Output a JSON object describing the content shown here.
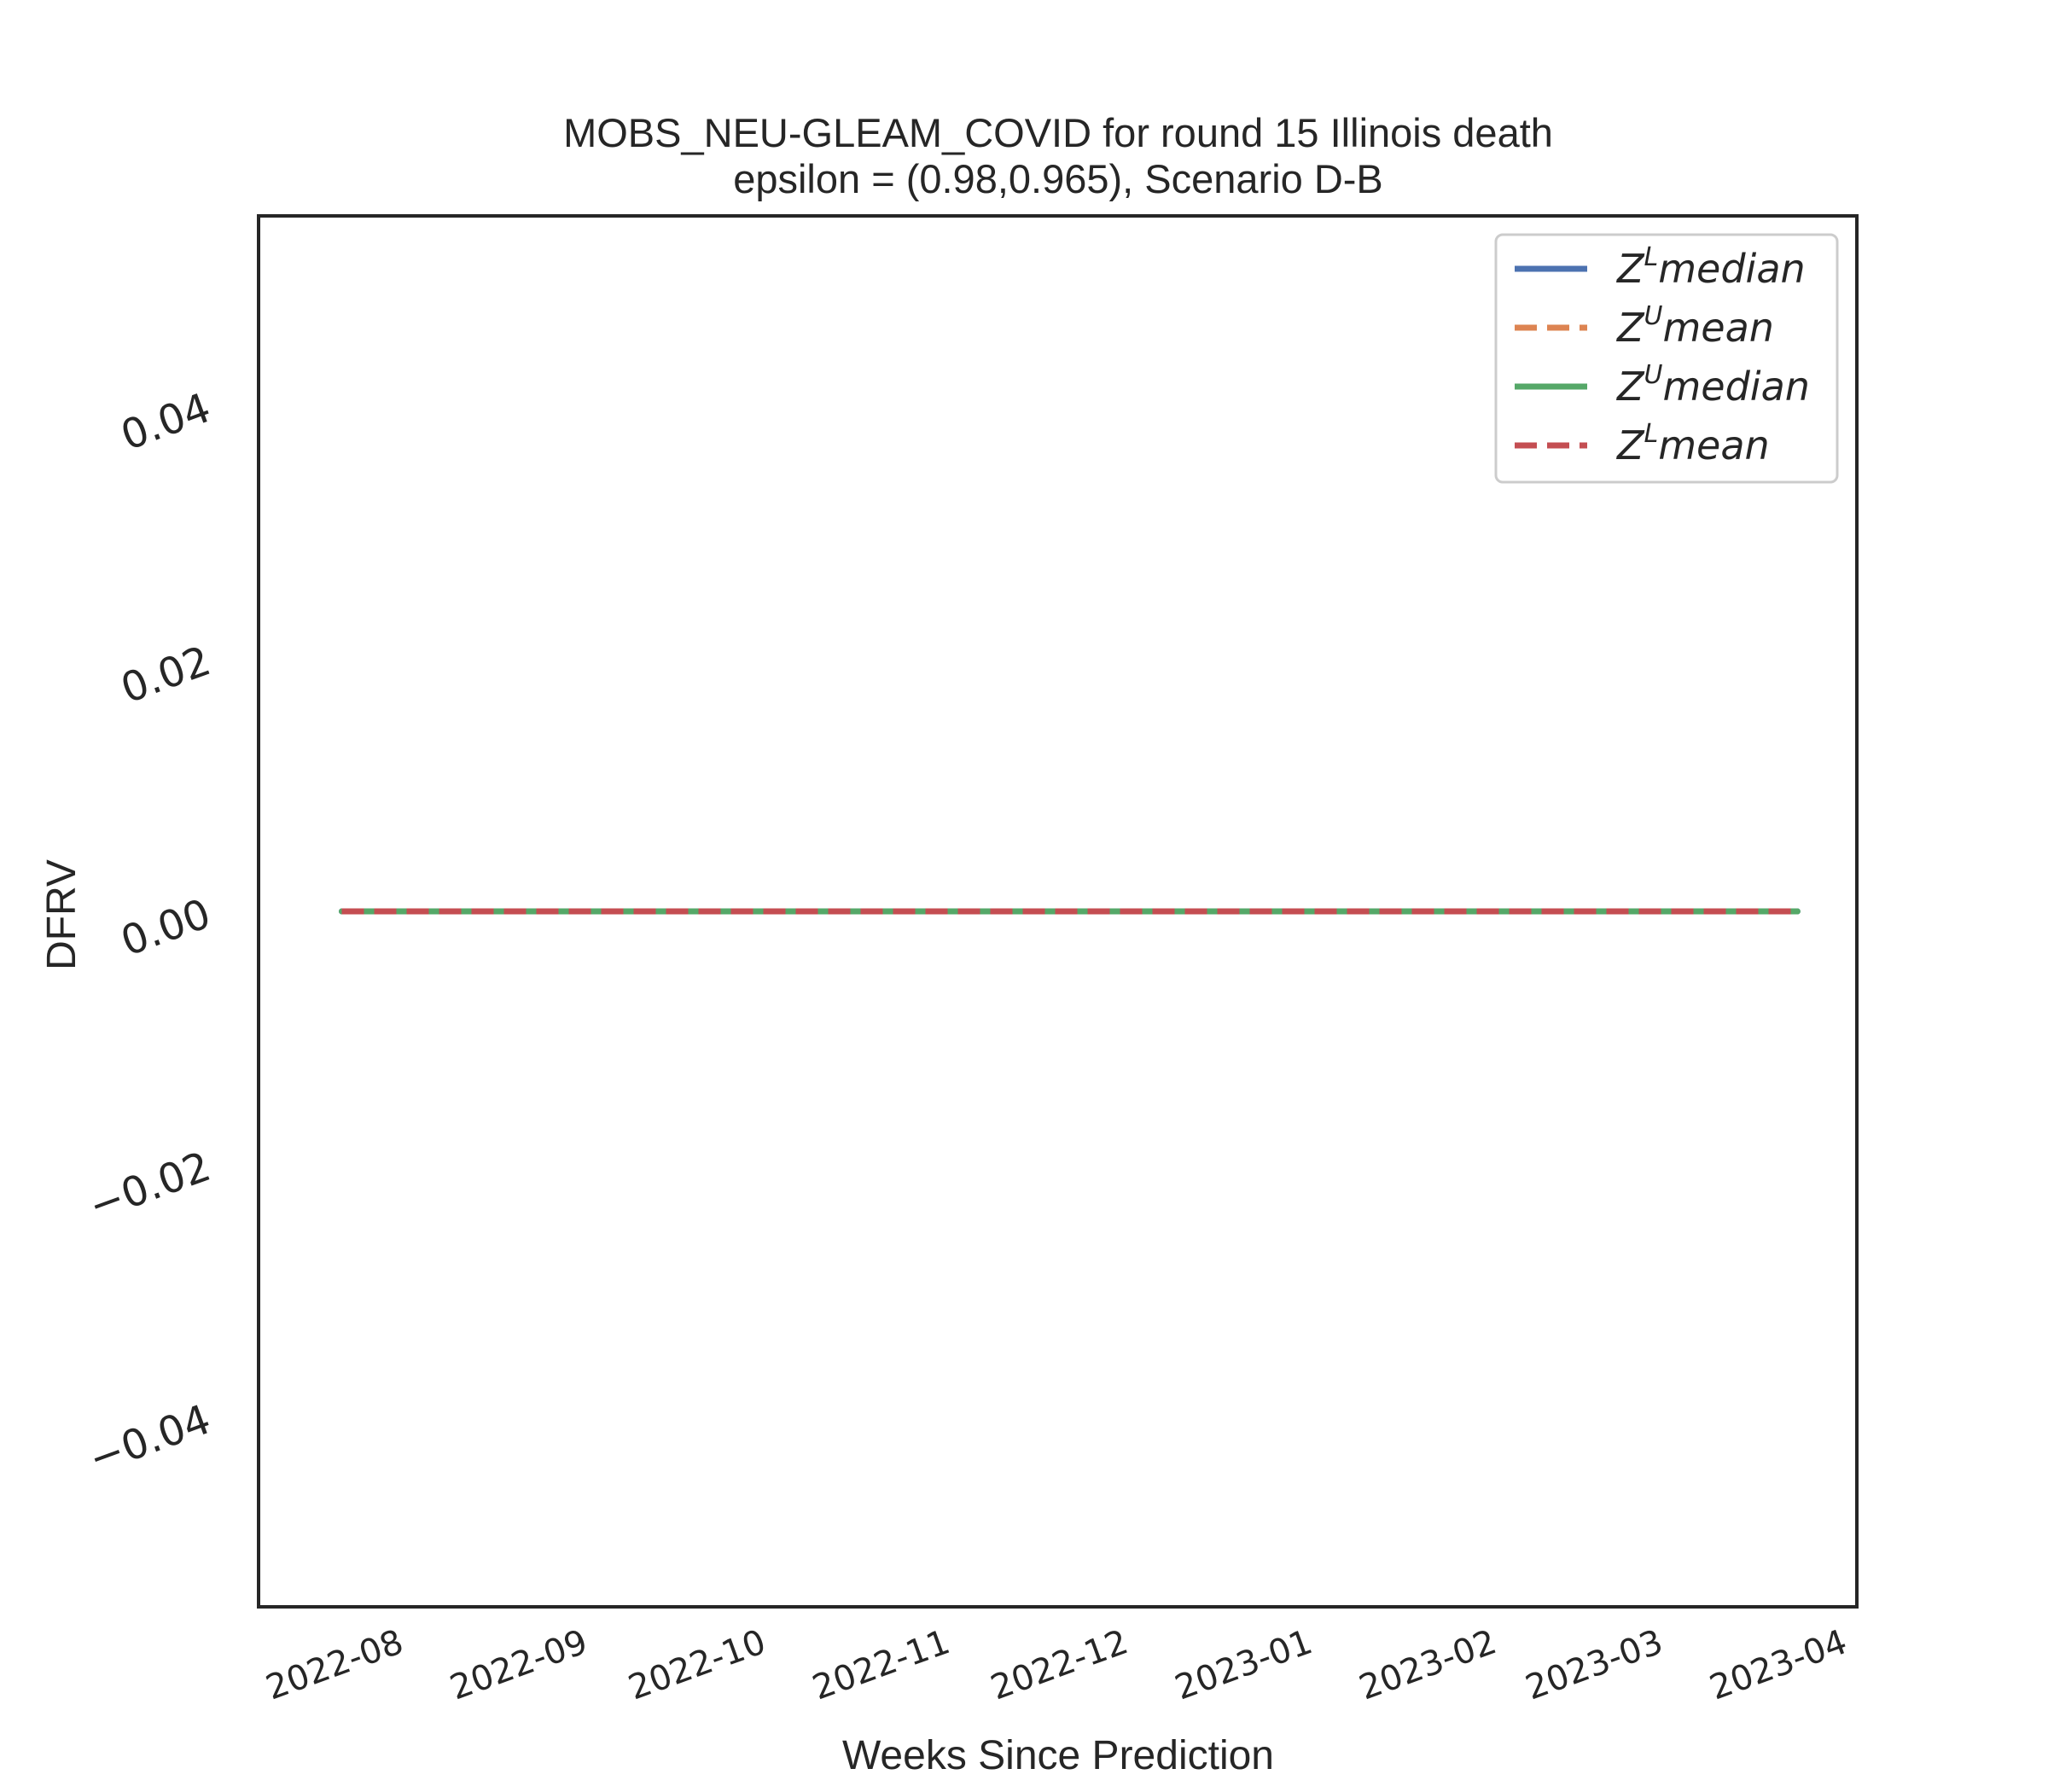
{
  "chart_data": {
    "type": "line",
    "title": "MOBS_NEU-GLEAM_COVID for round 15 Illinois  death",
    "subtitle": "epsilon = (0.98,0.965), Scenario D-B",
    "xlabel": "Weeks Since Prediction",
    "ylabel": "DFRV",
    "x_tick_labels": [
      "2022-08",
      "2022-09",
      "2022-10",
      "2022-11",
      "2022-12",
      "2023-01",
      "2023-02",
      "2023-03",
      "2023-04"
    ],
    "y_tick_labels": [
      "−0.04",
      "−0.02",
      "0.00",
      "0.02",
      "0.04"
    ],
    "y_ticks": [
      -0.04,
      -0.02,
      0.0,
      0.02,
      0.04
    ],
    "xlim": [
      "2022-07-09",
      "2023-04-04"
    ],
    "ylim": [
      -0.055,
      0.055
    ],
    "grid": false,
    "legend_position": "top-right",
    "x": [
      "2022-07-23",
      "2023-03-25"
    ],
    "series": [
      {
        "name": "Z^L median",
        "label_base": "Z",
        "label_sup": "L",
        "label_rest": "median",
        "color": "#4c72b0",
        "dash": "solid",
        "values": [
          0.0,
          0.0
        ]
      },
      {
        "name": "Z^U mean",
        "label_base": "Z",
        "label_sup": "U",
        "label_rest": "mean",
        "color": "#dd8452",
        "dash": "dashed",
        "values": [
          0.0,
          0.0
        ]
      },
      {
        "name": "Z^U median",
        "label_base": "Z",
        "label_sup": "U",
        "label_rest": "median",
        "color": "#55a868",
        "dash": "solid",
        "values": [
          0.0,
          0.0
        ]
      },
      {
        "name": "Z^L mean",
        "label_base": "Z",
        "label_sup": "L",
        "label_rest": "mean",
        "color": "#c44e52",
        "dash": "dashed",
        "values": [
          0.0,
          0.0
        ]
      }
    ]
  }
}
